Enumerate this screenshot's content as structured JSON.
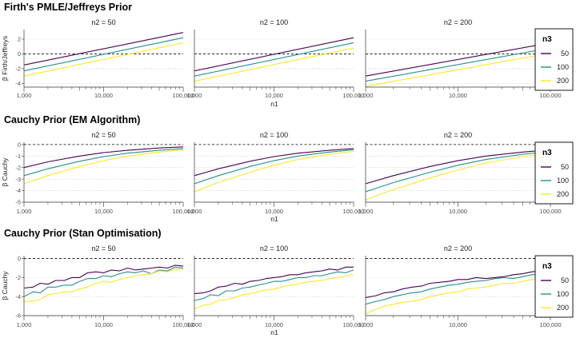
{
  "chart_data": [
    {
      "type": "line",
      "title": "Firth's PMLE/Jeffreys Prior",
      "xlabel": "n1",
      "ylabel": "β Firth/Jeffreys",
      "x_scale": "log",
      "xlim": [
        1000,
        100000
      ],
      "ylim": [
        -4.5,
        3.3
      ],
      "yticks": [
        -4,
        -2,
        0,
        2
      ],
      "xticks": [
        "1,000",
        "10,000",
        "100,000"
      ],
      "hline": 0,
      "legend": {
        "title": "n3",
        "placement": "right"
      },
      "panels": [
        {
          "strip": "n2 = 50",
          "series": [
            {
              "name": "50",
              "color": "#440154",
              "x": [
                1000,
                100000
              ],
              "y": [
                -1.5,
                2.9
              ]
            },
            {
              "name": "100",
              "color": "#21918c",
              "x": [
                1000,
                100000
              ],
              "y": [
                -2.3,
                2.2
              ]
            },
            {
              "name": "200",
              "color": "#fde725",
              "x": [
                1000,
                100000
              ],
              "y": [
                -3.0,
                1.5
              ]
            }
          ]
        },
        {
          "strip": "n2 = 100",
          "series": [
            {
              "name": "50",
              "color": "#440154",
              "x": [
                1000,
                100000
              ],
              "y": [
                -2.3,
                2.2
              ]
            },
            {
              "name": "100",
              "color": "#21918c",
              "x": [
                1000,
                100000
              ],
              "y": [
                -3.0,
                1.5
              ]
            },
            {
              "name": "200",
              "color": "#fde725",
              "x": [
                1000,
                100000
              ],
              "y": [
                -3.7,
                0.8
              ]
            }
          ]
        },
        {
          "strip": "n2 = 200",
          "series": [
            {
              "name": "50",
              "color": "#440154",
              "x": [
                1000,
                100000
              ],
              "y": [
                -3.0,
                1.5
              ]
            },
            {
              "name": "100",
              "color": "#21918c",
              "x": [
                1000,
                100000
              ],
              "y": [
                -3.7,
                0.8
              ]
            },
            {
              "name": "200",
              "color": "#fde725",
              "x": [
                1000,
                100000
              ],
              "y": [
                -4.4,
                0.1
              ]
            }
          ]
        }
      ]
    },
    {
      "type": "line",
      "title": "Cauchy Prior (EM Algorithm)",
      "xlabel": "n1",
      "ylabel": "β Cauchy",
      "x_scale": "log",
      "xlim": [
        1000,
        100000
      ],
      "ylim": [
        -5,
        0.2
      ],
      "yticks": [
        -5,
        -4,
        -3,
        -2,
        -1,
        0
      ],
      "xticks": [
        "1,000",
        "10,000",
        "100,000"
      ],
      "hline": 0,
      "legend": {
        "title": "n3",
        "placement": "right"
      },
      "panels": [
        {
          "strip": "n2 = 50",
          "series": [
            {
              "name": "50",
              "color": "#440154",
              "x": [
                1000,
                2000,
                5000,
                10000,
                20000,
                50000,
                100000
              ],
              "y": [
                -2.0,
                -1.5,
                -1.0,
                -0.7,
                -0.5,
                -0.3,
                -0.2
              ]
            },
            {
              "name": "100",
              "color": "#21918c",
              "x": [
                1000,
                2000,
                5000,
                10000,
                20000,
                50000,
                100000
              ],
              "y": [
                -2.7,
                -2.1,
                -1.45,
                -1.05,
                -0.75,
                -0.5,
                -0.35
              ]
            },
            {
              "name": "200",
              "color": "#fde725",
              "x": [
                1000,
                2000,
                5000,
                10000,
                20000,
                50000,
                100000
              ],
              "y": [
                -3.4,
                -2.7,
                -1.9,
                -1.4,
                -1.0,
                -0.65,
                -0.45
              ]
            }
          ]
        },
        {
          "strip": "n2 = 100",
          "series": [
            {
              "name": "50",
              "color": "#440154",
              "x": [
                1000,
                2000,
                5000,
                10000,
                20000,
                50000,
                100000
              ],
              "y": [
                -2.7,
                -2.1,
                -1.45,
                -1.05,
                -0.75,
                -0.5,
                -0.35
              ]
            },
            {
              "name": "100",
              "color": "#21918c",
              "x": [
                1000,
                2000,
                5000,
                10000,
                20000,
                50000,
                100000
              ],
              "y": [
                -3.4,
                -2.7,
                -1.9,
                -1.4,
                -1.0,
                -0.65,
                -0.45
              ]
            },
            {
              "name": "200",
              "color": "#fde725",
              "x": [
                1000,
                2000,
                5000,
                10000,
                20000,
                50000,
                100000
              ],
              "y": [
                -4.1,
                -3.3,
                -2.4,
                -1.8,
                -1.3,
                -0.85,
                -0.6
              ]
            }
          ]
        },
        {
          "strip": "n2 = 200",
          "series": [
            {
              "name": "50",
              "color": "#440154",
              "x": [
                1000,
                2000,
                5000,
                10000,
                20000,
                50000,
                100000
              ],
              "y": [
                -3.4,
                -2.7,
                -1.9,
                -1.4,
                -1.0,
                -0.65,
                -0.45
              ]
            },
            {
              "name": "100",
              "color": "#21918c",
              "x": [
                1000,
                2000,
                5000,
                10000,
                20000,
                50000,
                100000
              ],
              "y": [
                -4.1,
                -3.3,
                -2.4,
                -1.8,
                -1.3,
                -0.85,
                -0.6
              ]
            },
            {
              "name": "200",
              "color": "#fde725",
              "x": [
                1000,
                2000,
                5000,
                10000,
                20000,
                50000,
                100000
              ],
              "y": [
                -4.8,
                -3.9,
                -2.9,
                -2.2,
                -1.6,
                -1.05,
                -0.75
              ]
            }
          ]
        }
      ]
    },
    {
      "type": "line",
      "title": "Cauchy Prior (Stan Optimisation)",
      "xlabel": "n1",
      "ylabel": "β Cauchy",
      "x_scale": "log",
      "xlim": [
        1000,
        100000
      ],
      "ylim": [
        -6,
        0.3
      ],
      "yticks": [
        -6,
        -4,
        -2,
        0
      ],
      "xticks": [
        "1,000",
        "10,000",
        "100,000"
      ],
      "hline": 0,
      "legend": {
        "title": "n3",
        "placement": "right"
      },
      "panels": [
        {
          "strip": "n2 = 50",
          "series": [
            {
              "name": "50",
              "color": "#440154",
              "x": [
                1000,
                1300,
                1600,
                2000,
                2500,
                3200,
                4000,
                5000,
                6300,
                8000,
                10000,
                12600,
                15800,
                20000,
                25100,
                31600,
                39800,
                50100,
                63100,
                79400,
                100000
              ],
              "y": [
                -3.1,
                -3.0,
                -2.6,
                -2.7,
                -2.3,
                -2.3,
                -2.0,
                -2.0,
                -1.5,
                -1.4,
                -1.5,
                -1.2,
                -1.3,
                -1.0,
                -1.2,
                -1.1,
                -1.0,
                -0.9,
                -1.0,
                -0.7,
                -0.8
              ]
            },
            {
              "name": "100",
              "color": "#21918c",
              "x": [
                1000,
                1300,
                1600,
                2000,
                2500,
                3200,
                4000,
                5000,
                6300,
                8000,
                10000,
                12600,
                15800,
                20000,
                25100,
                31600,
                39800,
                50100,
                63100,
                79400,
                100000
              ],
              "y": [
                -4.0,
                -3.5,
                -3.6,
                -3.0,
                -3.0,
                -2.8,
                -2.8,
                -2.4,
                -2.1,
                -2.1,
                -1.8,
                -1.9,
                -1.6,
                -1.4,
                -1.5,
                -1.3,
                -1.6,
                -1.2,
                -1.3,
                -0.9,
                -1.0
              ]
            },
            {
              "name": "200",
              "color": "#fde725",
              "x": [
                1000,
                1300,
                1600,
                2000,
                2500,
                3200,
                4000,
                5000,
                6300,
                8000,
                10000,
                12600,
                15800,
                20000,
                25100,
                31600,
                39800,
                50100,
                63100,
                79400,
                100000
              ],
              "y": [
                -4.5,
                -4.5,
                -4.3,
                -3.8,
                -3.7,
                -3.5,
                -3.5,
                -3.2,
                -3.0,
                -2.6,
                -2.4,
                -2.5,
                -2.2,
                -2.0,
                -1.8,
                -1.7,
                -1.6,
                -1.3,
                -1.4,
                -1.1,
                -1.1
              ]
            }
          ]
        },
        {
          "strip": "n2 = 100",
          "series": [
            {
              "name": "50",
              "color": "#440154",
              "x": [
                1000,
                1300,
                1600,
                2000,
                2500,
                3200,
                4000,
                5000,
                6300,
                8000,
                10000,
                12600,
                15800,
                20000,
                25100,
                31600,
                39800,
                50100,
                63100,
                79400,
                100000
              ],
              "y": [
                -3.7,
                -3.6,
                -3.4,
                -3.0,
                -2.9,
                -2.6,
                -2.7,
                -2.4,
                -2.3,
                -2.1,
                -2.0,
                -1.9,
                -1.7,
                -1.7,
                -1.5,
                -1.4,
                -1.3,
                -1.1,
                -1.2,
                -0.9,
                -0.9
              ]
            },
            {
              "name": "100",
              "color": "#21918c",
              "x": [
                1000,
                1300,
                1600,
                2000,
                2500,
                3200,
                4000,
                5000,
                6300,
                8000,
                10000,
                12600,
                15800,
                20000,
                25100,
                31600,
                39800,
                50100,
                63100,
                79400,
                100000
              ],
              "y": [
                -4.4,
                -4.2,
                -3.8,
                -3.9,
                -3.4,
                -3.4,
                -3.1,
                -3.0,
                -2.8,
                -2.6,
                -2.4,
                -2.4,
                -2.2,
                -2.0,
                -2.0,
                -1.8,
                -1.8,
                -1.6,
                -1.4,
                -1.5,
                -1.2
              ]
            },
            {
              "name": "200",
              "color": "#fde725",
              "x": [
                1000,
                1300,
                1600,
                2000,
                2500,
                3200,
                4000,
                5000,
                6300,
                8000,
                10000,
                12600,
                15800,
                20000,
                25100,
                31600,
                39800,
                50100,
                63100,
                79400,
                100000
              ],
              "y": [
                -5.3,
                -4.9,
                -4.8,
                -4.4,
                -4.3,
                -4.1,
                -3.8,
                -3.7,
                -3.5,
                -3.3,
                -3.2,
                -3.0,
                -2.8,
                -2.7,
                -2.5,
                -2.4,
                -2.3,
                -2.1,
                -2.0,
                -1.8,
                -1.7
              ]
            }
          ]
        },
        {
          "strip": "n2 = 200",
          "series": [
            {
              "name": "50",
              "color": "#440154",
              "x": [
                1000,
                1300,
                1600,
                2000,
                2500,
                3200,
                4000,
                5000,
                6300,
                8000,
                10000,
                12600,
                15800,
                20000,
                25100,
                31600,
                39800,
                50100,
                63100,
                79400,
                100000
              ],
              "y": [
                -4.1,
                -3.9,
                -3.6,
                -3.5,
                -3.2,
                -3.0,
                -2.9,
                -2.6,
                -2.5,
                -2.4,
                -2.2,
                -2.2,
                -2.0,
                -2.1,
                -2.0,
                -1.9,
                -1.7,
                -1.6,
                -1.4,
                -1.3,
                -1.0
              ]
            },
            {
              "name": "100",
              "color": "#21918c",
              "x": [
                1000,
                1300,
                1600,
                2000,
                2500,
                3200,
                4000,
                5000,
                6300,
                8000,
                10000,
                12600,
                15800,
                20000,
                25100,
                31600,
                39800,
                50100,
                63100,
                79400,
                100000
              ],
              "y": [
                -4.8,
                -4.5,
                -4.3,
                -4.0,
                -3.8,
                -3.6,
                -3.5,
                -3.2,
                -3.0,
                -2.8,
                -2.7,
                -2.5,
                -2.4,
                -2.3,
                -2.1,
                -2.0,
                -2.1,
                -1.9,
                -1.7,
                -1.6,
                -1.5
              ]
            },
            {
              "name": "200",
              "color": "#fde725",
              "x": [
                1000,
                1300,
                1600,
                2000,
                2500,
                3200,
                4000,
                5000,
                6300,
                8000,
                10000,
                12600,
                15800,
                20000,
                25100,
                31600,
                39800,
                50100,
                63100,
                79400,
                100000
              ],
              "y": [
                -5.8,
                -5.3,
                -5.0,
                -4.8,
                -4.6,
                -4.5,
                -4.3,
                -4.0,
                -3.8,
                -3.6,
                -3.5,
                -3.2,
                -3.1,
                -3.0,
                -2.8,
                -2.6,
                -2.6,
                -2.4,
                -2.2,
                -2.2,
                -2.0
              ]
            }
          ]
        }
      ]
    }
  ]
}
